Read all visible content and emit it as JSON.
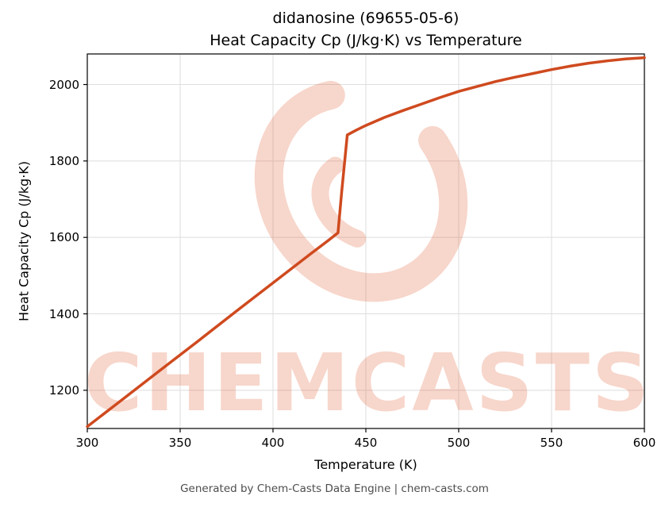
{
  "chart_data": {
    "type": "line",
    "title_line1": "didanosine (69655-05-6)",
    "title_line2": "Heat Capacity Cp (J/kg·K) vs Temperature",
    "xlabel": "Temperature (K)",
    "ylabel": "Heat Capacity Cp (J/kg·K)",
    "xlim": [
      300,
      600
    ],
    "ylim": [
      1100,
      2080
    ],
    "xticks": [
      300,
      350,
      400,
      450,
      500,
      550,
      600
    ],
    "yticks": [
      1200,
      1400,
      1600,
      1800,
      2000
    ],
    "grid": true,
    "legend_position": "none",
    "line_color": "#cf4a1f",
    "series": [
      {
        "name": "Heat Capacity Cp",
        "x": [
          300,
          320,
          340,
          360,
          380,
          400,
          420,
          430,
          435,
          437,
          440,
          445,
          450,
          460,
          470,
          480,
          490,
          500,
          510,
          520,
          530,
          540,
          550,
          560,
          570,
          580,
          590,
          600
        ],
        "y": [
          1105,
          1180,
          1255,
          1330,
          1406,
          1481,
          1556,
          1593,
          1612,
          1720,
          1868,
          1881,
          1893,
          1914,
          1932,
          1949,
          1966,
          1982,
          1995,
          2008,
          2019,
          2029,
          2039,
          2048,
          2056,
          2062,
          2067,
          2070
        ]
      }
    ]
  },
  "watermark": {
    "text": "CHEMCASTS",
    "logo_icon": "chemcasts-c-swirl",
    "color": "#e2572a"
  },
  "footer": {
    "text": "Generated by Chem-Casts Data Engine | chem-casts.com"
  }
}
